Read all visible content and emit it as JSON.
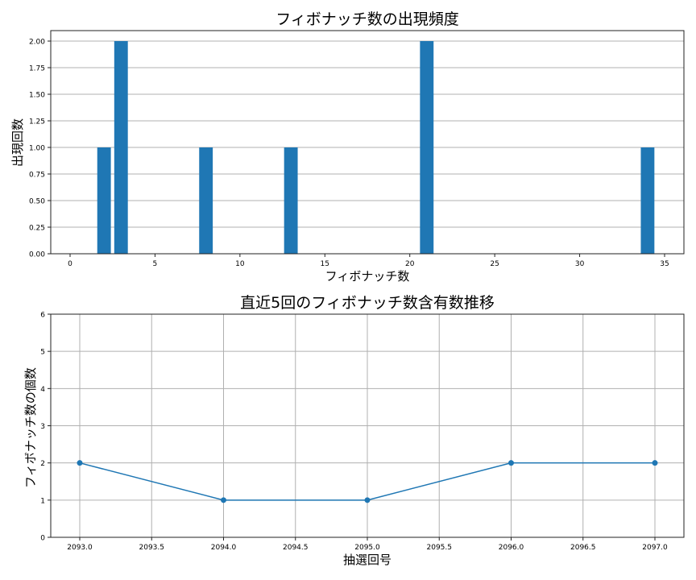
{
  "chart_data": [
    {
      "type": "bar",
      "title": "フィボナッチ数の出現頻度",
      "xlabel": "フィボナッチ数",
      "ylabel": "出現回数",
      "x": [
        2,
        3,
        8,
        13,
        21,
        34
      ],
      "values": [
        1,
        2,
        1,
        1,
        2,
        1
      ],
      "xlim": [
        -1.6,
        36.2
      ],
      "ylim": [
        0,
        2.1
      ],
      "xticks": [
        "0",
        "5",
        "10",
        "15",
        "20",
        "25",
        "30",
        "35"
      ],
      "yticks": [
        "0.00",
        "0.25",
        "0.50",
        "0.75",
        "1.00",
        "1.25",
        "1.50",
        "1.75",
        "2.00"
      ],
      "grid": "y",
      "bar_color": "#1f77b4"
    },
    {
      "type": "line",
      "title": "直近5回のフィボナッチ数含有数推移",
      "xlabel": "抽選回号",
      "ylabel": "フィボナッチ数の個数",
      "x": [
        2093,
        2094,
        2095,
        2096,
        2097
      ],
      "values": [
        2,
        1,
        1,
        2,
        2
      ],
      "xlim": [
        2092.8,
        2097.2
      ],
      "ylim": [
        0,
        6
      ],
      "xticks": [
        "2093.0",
        "2093.5",
        "2094.0",
        "2094.5",
        "2095.0",
        "2095.5",
        "2096.0",
        "2096.5",
        "2097.0"
      ],
      "yticks": [
        "0",
        "1",
        "2",
        "3",
        "4",
        "5",
        "6"
      ],
      "grid": "both",
      "marker": "o",
      "line_color": "#1f77b4"
    }
  ],
  "top": {
    "title": "フィボナッチ数の出現頻度",
    "xlabel": "フィボナッチ数",
    "ylabel": "出現回数"
  },
  "bottom": {
    "title": "直近5回のフィボナッチ数含有数推移",
    "xlabel": "抽選回号",
    "ylabel": "フィボナッチ数の個数"
  }
}
